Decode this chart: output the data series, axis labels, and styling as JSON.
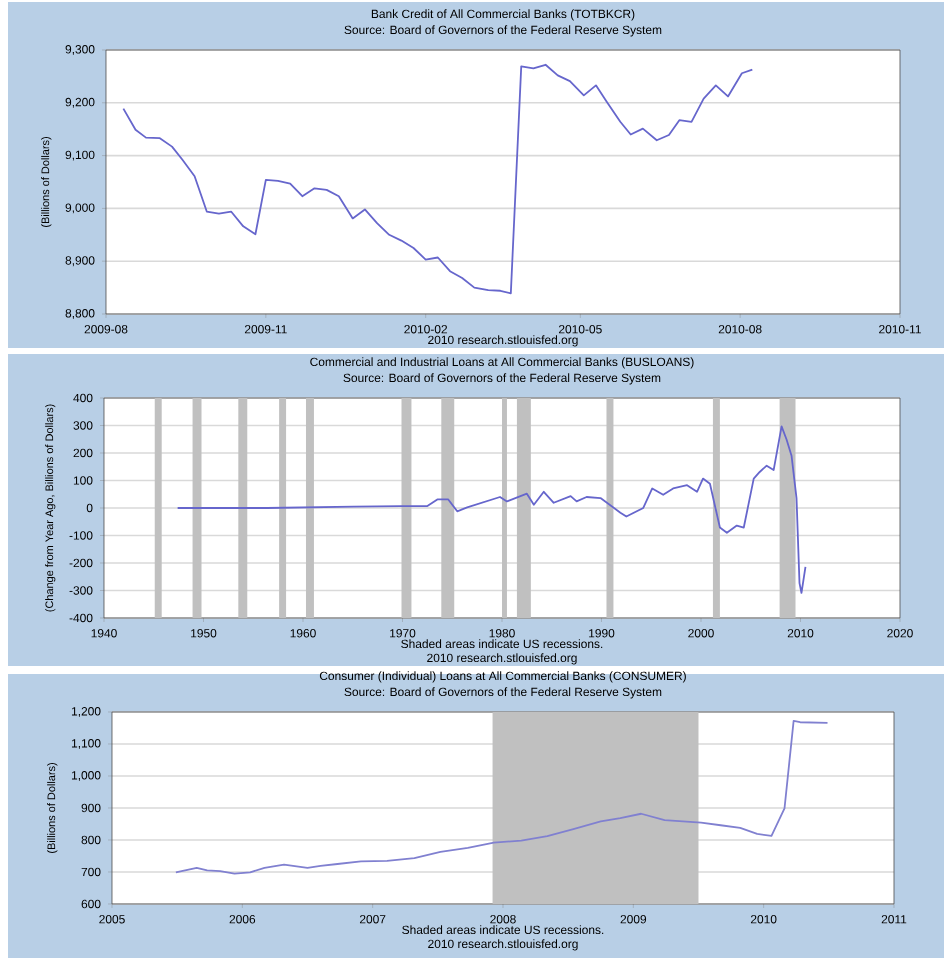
{
  "chart_data": [
    {
      "type": "line",
      "title": "Bank Credit of All Commercial Banks (TOTBKCR)",
      "subtitle": "Source: Board of Governors of the Federal Reserve System",
      "ylabel": "(Billions of Dollars)",
      "annotations": [
        "2010 research.stlouisfed.org"
      ],
      "color": "#6666cc",
      "grid": "y",
      "marker": "none",
      "x": [
        "2009-08-11",
        "2009-08-18",
        "2009-08-24",
        "2009-09-01",
        "2009-09-08",
        "2009-09-14",
        "2009-09-21",
        "2009-09-28",
        "2009-10-05",
        "2009-10-12",
        "2009-10-19",
        "2009-10-26",
        "2009-11-01",
        "2009-11-08",
        "2009-11-15",
        "2009-11-22",
        "2009-11-29",
        "2009-12-06",
        "2009-12-13",
        "2009-12-21",
        "2009-12-28",
        "2010-01-04",
        "2010-01-11",
        "2010-01-18",
        "2010-01-25",
        "2010-02-01",
        "2010-02-08",
        "2010-02-15",
        "2010-02-22",
        "2010-03-01",
        "2010-03-09",
        "2010-03-16",
        "2010-03-22",
        "2010-03-28",
        "2010-04-04",
        "2010-04-11",
        "2010-04-18",
        "2010-04-25",
        "2010-05-03",
        "2010-05-10",
        "2010-05-16",
        "2010-05-24",
        "2010-05-30",
        "2010-06-06",
        "2010-06-14",
        "2010-06-21",
        "2010-06-27",
        "2010-07-04",
        "2010-07-11",
        "2010-07-18",
        "2010-07-25",
        "2010-08-02",
        "2010-08-08"
      ],
      "values": [
        9189,
        9149,
        9134,
        9133,
        9117,
        9092,
        9061,
        8994,
        8990,
        8994,
        8966,
        8951,
        9054,
        9052,
        9047,
        9023,
        9038,
        9035,
        9023,
        8981,
        8998,
        8972,
        8950,
        8939,
        8925,
        8903,
        8907,
        8881,
        8868,
        8850,
        8845,
        8844,
        8839,
        9269,
        9265,
        9272,
        9252,
        9241,
        9214,
        9233,
        9203,
        9164,
        9140,
        9151,
        9129,
        9139,
        9167,
        9164,
        9208,
        9233,
        9212,
        9256,
        9263
      ],
      "xlim": [
        "2009-08",
        "2010-11"
      ],
      "xticks": [
        {
          "value": "2009-08",
          "label": "2009-08"
        },
        {
          "value": "2009-11",
          "label": "2009-11"
        },
        {
          "value": "2010-02",
          "label": "2010-02"
        },
        {
          "value": "2010-05",
          "label": "2010-05"
        },
        {
          "value": "2010-08",
          "label": "2010-08"
        },
        {
          "value": "2010-11",
          "label": "2010-11"
        }
      ],
      "ylim": [
        8800,
        9300
      ],
      "yticks": [
        {
          "value": 8800,
          "label": "8,800"
        },
        {
          "value": 8900,
          "label": "8,900"
        },
        {
          "value": 9000,
          "label": "9,000"
        },
        {
          "value": 9100,
          "label": "9,100"
        },
        {
          "value": 9200,
          "label": "9,200"
        },
        {
          "value": 9300,
          "label": "9,300"
        }
      ]
    },
    {
      "type": "line",
      "title": "Commercial and Industrial Loans at All Commercial Banks (BUSLOANS)",
      "subtitle": "Source: Board of Governors of the Federal Reserve System",
      "ylabel": "(Change from Year Ago, Billions of Dollars)",
      "annotations": [
        "Shaded areas indicate US recessions.",
        "2010 research.stlouisfed.org"
      ],
      "color": "#6666cc",
      "grid": "y",
      "marker": "none",
      "x": [
        1947.4,
        1956.4,
        1965.1,
        1969.8,
        1972.5,
        1973.5,
        1974.6,
        1975.5,
        1976.5,
        1979.8,
        1980.5,
        1982.5,
        1983.2,
        1984.2,
        1985.2,
        1986.9,
        1987.5,
        1988.5,
        1989.9,
        1991.9,
        1992.5,
        1994.2,
        1995.1,
        1996.2,
        1997.2,
        1998.6,
        1999.6,
        2000.2,
        2000.9,
        2001.9,
        2002.6,
        2003.6,
        2004.3,
        2005.3,
        2005.9,
        2006.6,
        2007.3,
        2008.1,
        2008.6,
        2009.1,
        2009.6,
        2009.9,
        2010.1,
        2010.5
      ],
      "values": [
        0,
        0,
        5,
        7,
        7,
        31,
        31,
        -12,
        2,
        40,
        24,
        52,
        12,
        59,
        19,
        43,
        24,
        40,
        36,
        -17,
        -31,
        0,
        71,
        48,
        71,
        83,
        59,
        107,
        88,
        -71,
        -90,
        -64,
        -71,
        107,
        131,
        154,
        138,
        297,
        249,
        190,
        36,
        -273,
        -309,
        -214
      ],
      "xlim": [
        1940,
        2020
      ],
      "xticks": [
        1940,
        1950,
        1960,
        1970,
        1980,
        1990,
        2000,
        2010,
        2020
      ],
      "ylim": [
        -400,
        400
      ],
      "yticks": [
        -400,
        -300,
        -200,
        -100,
        0,
        100,
        200,
        300,
        400
      ],
      "bands": [
        {
          "axis": "x",
          "from": 1945.1,
          "to": 1945.8,
          "color": "#c0c0c0"
        },
        {
          "axis": "x",
          "from": 1948.9,
          "to": 1949.8,
          "color": "#c0c0c0"
        },
        {
          "axis": "x",
          "from": 1953.5,
          "to": 1954.4,
          "color": "#c0c0c0"
        },
        {
          "axis": "x",
          "from": 1957.6,
          "to": 1958.3,
          "color": "#c0c0c0"
        },
        {
          "axis": "x",
          "from": 1960.3,
          "to": 1961.1,
          "color": "#c0c0c0"
        },
        {
          "axis": "x",
          "from": 1969.9,
          "to": 1970.9,
          "color": "#c0c0c0"
        },
        {
          "axis": "x",
          "from": 1973.9,
          "to": 1975.2,
          "color": "#c0c0c0"
        },
        {
          "axis": "x",
          "from": 1980.0,
          "to": 1980.5,
          "color": "#c0c0c0"
        },
        {
          "axis": "x",
          "from": 1981.5,
          "to": 1982.9,
          "color": "#c0c0c0"
        },
        {
          "axis": "x",
          "from": 1990.5,
          "to": 1991.2,
          "color": "#c0c0c0"
        },
        {
          "axis": "x",
          "from": 2001.2,
          "to": 2001.9,
          "color": "#c0c0c0"
        },
        {
          "axis": "x",
          "from": 2007.9,
          "to": 2009.5,
          "color": "#c0c0c0"
        }
      ]
    },
    {
      "type": "line",
      "title": "Consumer (Individual) Loans at All Commercial Banks (CONSUMER)",
      "subtitle": "Source: Board of Governors of the Federal Reserve System",
      "ylabel": "(Billions of Dollars)",
      "annotations": [
        "Shaded areas indicate US recessions.",
        "2010 research.stlouisfed.org"
      ],
      "color": "#8080d0",
      "grid": "y",
      "marker": "none",
      "x": [
        2005.49,
        2005.65,
        2005.73,
        2005.83,
        2005.94,
        2006.06,
        2006.17,
        2006.32,
        2006.5,
        2006.6,
        2006.73,
        2006.91,
        2007.11,
        2007.32,
        2007.52,
        2007.73,
        2007.93,
        2008.14,
        2008.34,
        2008.54,
        2008.75,
        2008.9,
        2009.06,
        2009.24,
        2009.52,
        2009.67,
        2009.82,
        2009.95,
        2010.06,
        2010.16,
        2010.23,
        2010.28,
        2010.49
      ],
      "values": [
        699,
        713,
        705,
        703,
        695,
        699,
        713,
        723,
        713,
        719,
        725,
        733,
        735,
        743,
        763,
        775,
        792,
        798,
        812,
        834,
        858,
        868,
        882,
        862,
        854,
        846,
        838,
        819,
        813,
        899,
        1172,
        1168,
        1166
      ],
      "xlim": [
        2005,
        2011
      ],
      "xticks": [
        2005,
        2006,
        2007,
        2008,
        2009,
        2010,
        2011
      ],
      "ylim": [
        600,
        1200
      ],
      "yticks": [
        {
          "value": 600,
          "label": "600"
        },
        {
          "value": 700,
          "label": "700"
        },
        {
          "value": 800,
          "label": "800"
        },
        {
          "value": 900,
          "label": "900"
        },
        {
          "value": 1000,
          "label": "1,000"
        },
        {
          "value": 1100,
          "label": "1,100"
        },
        {
          "value": 1200,
          "label": "1,200"
        }
      ],
      "bands": [
        {
          "axis": "x",
          "from": 2007.92,
          "to": 2009.5,
          "color": "#c0c0c0"
        }
      ]
    }
  ]
}
